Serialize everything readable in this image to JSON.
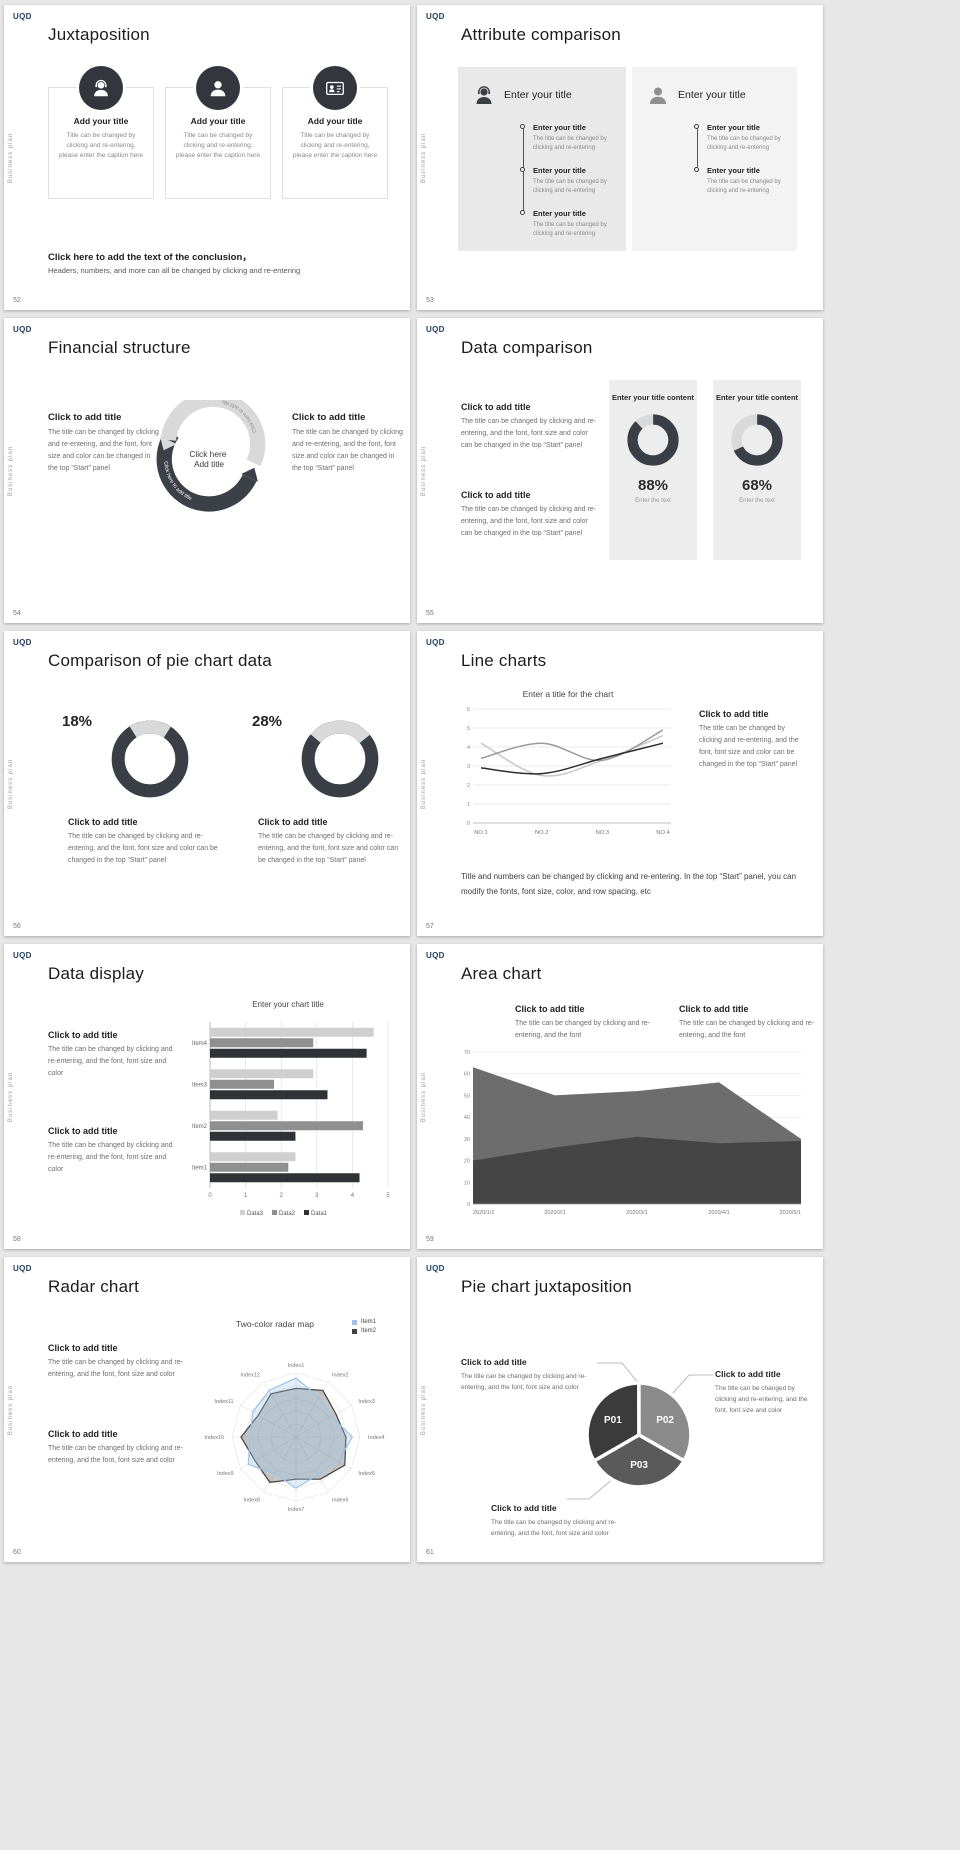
{
  "page": {
    "background": "#e7e7e7"
  },
  "common": {
    "logo": "UQD",
    "sidebar_text": "Business plan"
  },
  "slides": [
    {
      "number": "52",
      "title": "Juxtaposition",
      "cards": [
        {
          "icon": "support-person-icon",
          "heading": "Add your title",
          "text": "Title can be changed by clicking and re-entering, please enter the caption here"
        },
        {
          "icon": "person-icon",
          "heading": "Add your title",
          "text": "Title can be changed by clicking and re-entering, please enter the caption here"
        },
        {
          "icon": "id-card-person-icon",
          "heading": "Add your title",
          "text": "Title can be changed by clicking and re-entering, please enter the caption here"
        }
      ],
      "conclusion_heading": "Click here to add the text of the conclusion，",
      "conclusion_text": "Headers, numbers, and more can all be changed by clicking and re-entering"
    },
    {
      "number": "53",
      "title": "Attribute comparison",
      "panels": [
        {
          "heading": "Enter your title",
          "items": [
            {
              "heading": "Enter your title",
              "text": "The title can be changed by clicking and re-entering"
            },
            {
              "heading": "Enter your title",
              "text": "The title can be changed by clicking and re-entering"
            },
            {
              "heading": "Enter your title",
              "text": "The title can be changed by clicking and re-entering"
            }
          ]
        },
        {
          "heading": "Enter your title",
          "items": [
            {
              "heading": "Enter your title",
              "text": "The title can be changed by clicking and re-entering"
            },
            {
              "heading": "Enter your title",
              "text": "The title can be changed by clicking and re-entering"
            }
          ]
        }
      ]
    },
    {
      "number": "54",
      "title": "Financial structure",
      "left_block": {
        "heading": "Click to add title",
        "text": "The title can be changed by clicking and re-entering, and the font, font size and color can be changed in the top “Start” panel"
      },
      "right_block": {
        "heading": "Click to add title",
        "text": "The title can be changed by clicking and re-entering, and the font, font size and color can be changed in the top “Start” panel"
      },
      "center_line1": "Click here",
      "center_line2": "Add title",
      "arc_text_dark": "Click here to add title",
      "arc_text_light": "Click here to add title"
    },
    {
      "number": "55",
      "title": "Data comparison",
      "blocks": [
        {
          "heading": "Click to add title",
          "text": "The title can be changed by clicking and re-entering, and the font, font size and color can be changed in the top “Start” panel"
        },
        {
          "heading": "Click to add title",
          "text": "The title can be changed by clicking and re-entering, and the font, font size and color can be changed in the top “Start” panel"
        }
      ],
      "panels": [
        {
          "heading": "Enter your title content",
          "percent": "88%",
          "caption": "Enter the text"
        },
        {
          "heading": "Enter your title content",
          "percent": "68%",
          "caption": "Enter the text"
        }
      ],
      "chart_data": [
        {
          "type": "donut",
          "value": 88,
          "color": "#3a3e45",
          "track": "#d9d9d9"
        },
        {
          "type": "donut",
          "value": 68,
          "color": "#3a3e45",
          "track": "#d9d9d9"
        }
      ]
    },
    {
      "number": "56",
      "title": "Comparison of pie chart data",
      "groups": [
        {
          "percent": "18%",
          "heading": "Click to add title",
          "text": "The title can be changed by clicking and re-entering, and the font, font size and color can be changed in the top “Start” panel"
        },
        {
          "percent": "28%",
          "heading": "Click to add title",
          "text": "The title can be changed by clicking and re-entering, and the font, font size and color can be changed in the top “Start” panel"
        }
      ],
      "chart_data": [
        {
          "type": "donut",
          "value": 18,
          "color": "#d9d9d9",
          "track": "#3a3e45"
        },
        {
          "type": "donut",
          "value": 28,
          "color": "#d9d9d9",
          "track": "#3a3e45"
        }
      ]
    },
    {
      "number": "57",
      "title": "Line charts",
      "chart_title": "Enter a title for the chart",
      "right_block": {
        "heading": "Click to add title",
        "text": "The title can be changed by clicking and re-entering, and the font, font size and color can be changed in the top “Start” panel"
      },
      "bottom_text": "Title and numbers can be changed by clicking and re-entering. In the top “Start” panel, you can modify the fonts, font size, color, and row spacing, etc",
      "chart_data": {
        "type": "line",
        "title": "Enter a title for the chart",
        "categories": [
          "NO.1",
          "NO.2",
          "NO.3",
          "NO.4"
        ],
        "ylim": [
          0,
          6
        ],
        "yticks": [
          0,
          1,
          2,
          3,
          4,
          5,
          6
        ],
        "series": [
          {
            "name": "series-light",
            "color": "#c8c8c8",
            "values": [
              4.2,
              2.5,
              3.3,
              4.6
            ]
          },
          {
            "name": "series-mid",
            "color": "#9b9b9b",
            "values": [
              3.4,
              4.2,
              3.3,
              4.9
            ]
          },
          {
            "name": "series-dark",
            "color": "#2e2e2e",
            "values": [
              2.9,
              2.6,
              3.4,
              4.2
            ]
          }
        ]
      }
    },
    {
      "number": "58",
      "title": "Data display",
      "chart_title": "Enter your chart title",
      "blocks": [
        {
          "heading": "Click to add title",
          "text": "The title can be changed by clicking and re-entering, and the font, font size and color"
        },
        {
          "heading": "Click to add title",
          "text": "The title can be changed by clicking and re-entering, and the font, font size and color"
        }
      ],
      "chart_data": {
        "type": "bar",
        "title": "Enter your chart title",
        "categories": [
          "Item1",
          "Item2",
          "Item3",
          "Item4"
        ],
        "xlim": [
          0,
          5
        ],
        "xticks": [
          0,
          1,
          2,
          3,
          4,
          5
        ],
        "series": [
          {
            "name": "Data1",
            "color": "#2f3237",
            "values": [
              4.2,
              2.4,
              3.3,
              4.4
            ]
          },
          {
            "name": "Data2",
            "color": "#8f8f8f",
            "values": [
              2.2,
              4.3,
              1.8,
              2.9
            ]
          },
          {
            "name": "Data3",
            "color": "#cfcfcf",
            "values": [
              2.4,
              1.9,
              2.9,
              4.6
            ]
          }
        ],
        "legend": [
          "Data3",
          "Data2",
          "Data1"
        ]
      }
    },
    {
      "number": "59",
      "title": "Area chart",
      "blocks": [
        {
          "heading": "Click to add title",
          "text": "The title can be changed by clicking and re-entering, and the font"
        },
        {
          "heading": "Click to add title",
          "text": "The title can be changed by clicking and re-entering, and the font"
        }
      ],
      "chart_data": {
        "type": "area",
        "categories": [
          "2020/1/1",
          "2020/2/1",
          "2020/3/1",
          "2020/4/1",
          "2020/5/1"
        ],
        "ylim": [
          0,
          70
        ],
        "yticks": [
          0,
          10,
          20,
          30,
          40,
          50,
          60,
          70
        ],
        "series": [
          {
            "name": "series-top",
            "color": "#6d6d6d",
            "values": [
              63,
              50,
              52,
              56,
              30
            ]
          },
          {
            "name": "series-bottom",
            "color": "#454545",
            "values": [
              20,
              26,
              31,
              28,
              29
            ]
          }
        ]
      }
    },
    {
      "number": "60",
      "title": "Radar chart",
      "chart_title": "Two-color radar map",
      "blocks": [
        {
          "heading": "Click to add title",
          "text": "The title can be changed by clicking and re-entering, and the font, font size and color"
        },
        {
          "heading": "Click to add title",
          "text": "The title can be changed by clicking and re-entering, and the font, font size and color"
        }
      ],
      "chart_data": {
        "type": "radar",
        "title": "Two-color radar map",
        "axes": [
          "Index1",
          "Index2",
          "Index3",
          "Index4",
          "Index5",
          "Index6",
          "Index7",
          "Index8",
          "Index9",
          "Index10",
          "Index11",
          "Index12"
        ],
        "max": 5,
        "series": [
          {
            "name": "Item1",
            "color": "#9dc3e6",
            "values": [
              4.6,
              3.6,
              3.2,
              4.4,
              3.8,
              3.4,
              4.0,
              3.3,
              4.3,
              3.6,
              3.9,
              4.2
            ]
          },
          {
            "name": "Item2",
            "color": "#404040",
            "values": [
              3.8,
              4.2,
              3.6,
              3.9,
              4.4,
              3.8,
              3.3,
              4.1,
              3.7,
              4.3,
              3.4,
              3.9
            ]
          }
        ]
      }
    },
    {
      "number": "61",
      "title": "Pie chart juxtaposition",
      "blocks": [
        {
          "heading": "Click to add title",
          "text": "The title can be changed by clicking and re-entering, and the font, font size and color"
        },
        {
          "heading": "Click to add title",
          "text": "The title can be changed by clicking and re-entering, and the font, font size and color"
        },
        {
          "heading": "Click to add title",
          "text": "The title can be changed by clicking and re-entering, and the font, font size and color"
        }
      ],
      "chart_data": {
        "type": "pie",
        "slices": [
          {
            "label": "P01",
            "value": 33.3,
            "color": "#3b3b3b"
          },
          {
            "label": "P02",
            "value": 33.3,
            "color": "#8a8a8a"
          },
          {
            "label": "P03",
            "value": 33.4,
            "color": "#5a5a5a"
          }
        ]
      }
    }
  ]
}
